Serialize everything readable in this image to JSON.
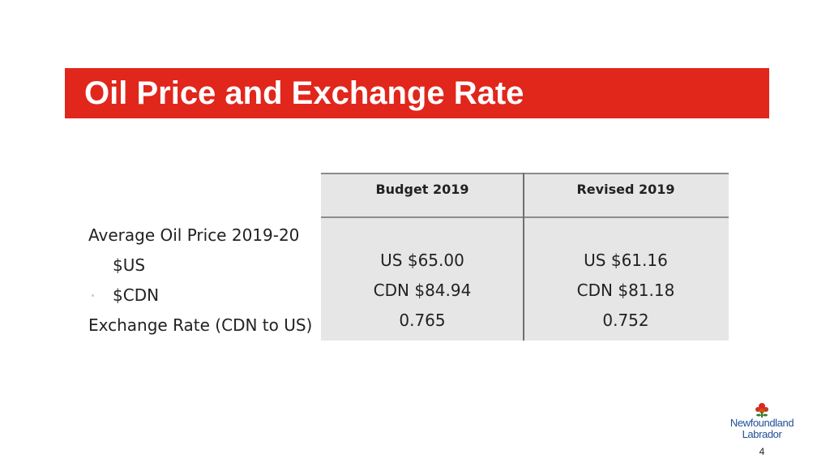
{
  "slide": {
    "title": "Oil Price and Exchange Rate",
    "page_number": "4"
  },
  "row_labels": [
    "Average Oil Price 2019-20",
    "$US",
    "$CDN",
    "Exchange Rate (CDN to US)"
  ],
  "table": {
    "columns": [
      {
        "header": "Budget 2019",
        "values": [
          "US $65.00",
          "CDN $84.94",
          "0.765"
        ]
      },
      {
        "header": "Revised 2019",
        "values": [
          "US $61.16",
          "CDN $81.18",
          "0.752"
        ]
      }
    ]
  },
  "logo": {
    "line1": "Newfoundland",
    "line2": "Labrador",
    "icon": "pitcher-plant-flower-icon"
  },
  "colors": {
    "title_bar": "#e1261c",
    "table_background": "#e6e6e6",
    "logo_text": "#1f4e96"
  }
}
